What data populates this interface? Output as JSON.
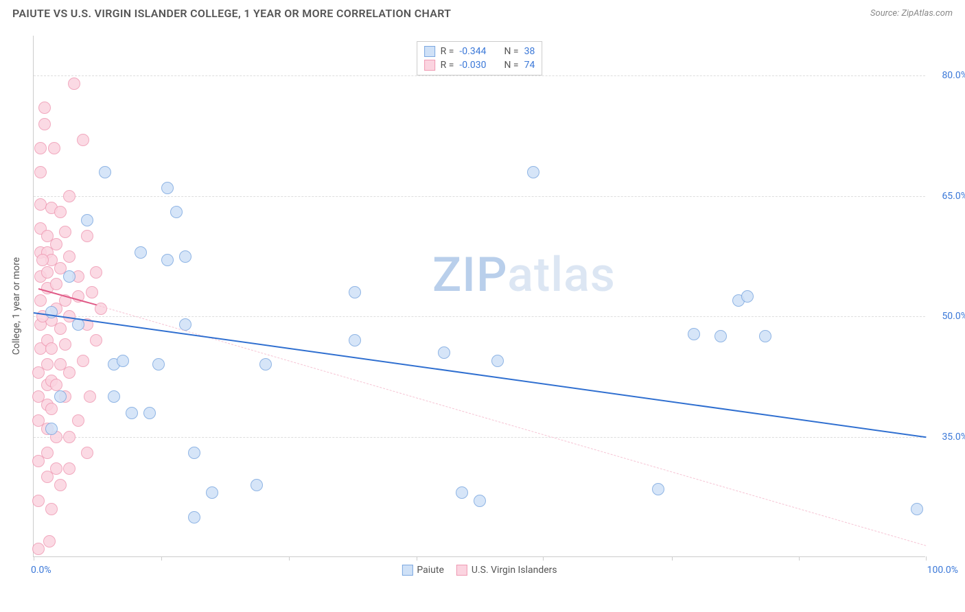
{
  "header": {
    "title": "PAIUTE VS U.S. VIRGIN ISLANDER COLLEGE, 1 YEAR OR MORE CORRELATION CHART",
    "source_prefix": "Source: ",
    "source_name": "ZipAtlas.com"
  },
  "watermark": {
    "a": "ZIP",
    "b": "atlas"
  },
  "axes": {
    "ylabel": "College, 1 year or more",
    "xlim": [
      0,
      100
    ],
    "ylim": [
      20,
      85
    ],
    "yticks": [
      35.0,
      50.0,
      65.0,
      80.0
    ],
    "ytick_labels": [
      "35.0%",
      "50.0%",
      "65.0%",
      "80.0%"
    ],
    "xticks": [
      0,
      14.3,
      28.6,
      42.9,
      57.1,
      71.5,
      85.8,
      100
    ],
    "xaxis_left_label": "0.0%",
    "xaxis_right_label": "100.0%"
  },
  "styling": {
    "grid_color": "#dddddd",
    "axis_color": "#cccccc",
    "tick_label_color": "#3b78d8",
    "ylabel_color": "#555555",
    "ylabel_fontsize": 14,
    "marker_radius": 9,
    "marker_stroke_width": 1,
    "background": "#ffffff"
  },
  "series": {
    "paiute": {
      "label": "Paiute",
      "fill": "#cfe1f7",
      "stroke": "#7ba7e0",
      "trend_solid_color": "#2f6fd0",
      "trend_dash_color": "#a9c6ec",
      "trend_solid": {
        "x0": 0,
        "y0": 50.5,
        "x1": 100,
        "y1": 35.0
      },
      "points": [
        [
          2,
          50.5
        ],
        [
          5,
          49
        ],
        [
          6,
          62
        ],
        [
          8,
          68
        ],
        [
          9,
          40
        ],
        [
          9,
          44
        ],
        [
          10,
          44.5
        ],
        [
          11,
          38
        ],
        [
          12,
          58
        ],
        [
          13,
          38
        ],
        [
          15,
          66
        ],
        [
          16,
          63
        ],
        [
          17,
          57.5
        ],
        [
          18,
          33
        ],
        [
          18,
          25
        ],
        [
          20,
          28
        ],
        [
          25,
          29
        ],
        [
          26,
          44
        ],
        [
          14,
          44
        ],
        [
          15,
          57
        ],
        [
          17,
          49
        ],
        [
          36,
          53
        ],
        [
          36,
          47
        ],
        [
          46,
          45.5
        ],
        [
          48,
          28
        ],
        [
          50,
          27
        ],
        [
          52,
          44.5
        ],
        [
          56,
          68
        ],
        [
          70,
          28.5
        ],
        [
          74,
          47.8
        ],
        [
          77,
          47.5
        ],
        [
          79,
          52
        ],
        [
          80,
          52.5
        ],
        [
          82,
          47.5
        ],
        [
          99,
          26
        ],
        [
          4,
          55
        ],
        [
          3,
          40
        ],
        [
          2,
          36
        ]
      ]
    },
    "usvi": {
      "label": "U.S. Virgin Islanders",
      "fill": "#fbd4e0",
      "stroke": "#ef9ab3",
      "trend_solid_color": "#e05a87",
      "trend_dash_color": "#f6c3d3",
      "trend_solid": {
        "x0": 0.5,
        "y0": 53.5,
        "x1": 7,
        "y1": 51.5
      },
      "trend_dash": {
        "x0": 7,
        "y0": 51.5,
        "x1": 100,
        "y1": 21.5
      },
      "points": [
        [
          0.5,
          21
        ],
        [
          0.5,
          27
        ],
        [
          0.5,
          32
        ],
        [
          0.5,
          37
        ],
        [
          0.5,
          40
        ],
        [
          0.5,
          43
        ],
        [
          0.8,
          46
        ],
        [
          0.8,
          49
        ],
        [
          0.8,
          52
        ],
        [
          0.8,
          55
        ],
        [
          0.8,
          58
        ],
        [
          0.8,
          61
        ],
        [
          0.8,
          64
        ],
        [
          0.8,
          68
        ],
        [
          0.8,
          71
        ],
        [
          1.2,
          74
        ],
        [
          1.2,
          76
        ],
        [
          1.5,
          30
        ],
        [
          1.5,
          33
        ],
        [
          1.5,
          36
        ],
        [
          1.5,
          39
        ],
        [
          1.5,
          41.5
        ],
        [
          1.5,
          44
        ],
        [
          1.5,
          47
        ],
        [
          1.5,
          53.5
        ],
        [
          1.5,
          55.5
        ],
        [
          1.5,
          58
        ],
        [
          1.5,
          60
        ],
        [
          1.8,
          22
        ],
        [
          2,
          26
        ],
        [
          2,
          38.5
        ],
        [
          2,
          42
        ],
        [
          2,
          46
        ],
        [
          2,
          49.5
        ],
        [
          2,
          57
        ],
        [
          2,
          63.5
        ],
        [
          2.3,
          71
        ],
        [
          2.5,
          31
        ],
        [
          2.5,
          35
        ],
        [
          2.5,
          41.5
        ],
        [
          2.5,
          51
        ],
        [
          2.5,
          54
        ],
        [
          2.5,
          59
        ],
        [
          3,
          29
        ],
        [
          3,
          44
        ],
        [
          3,
          48.5
        ],
        [
          3,
          56
        ],
        [
          3,
          63
        ],
        [
          3.5,
          40
        ],
        [
          3.5,
          46.5
        ],
        [
          3.5,
          52
        ],
        [
          3.5,
          60.5
        ],
        [
          4,
          35
        ],
        [
          4,
          43
        ],
        [
          4,
          50
        ],
        [
          4,
          57.5
        ],
        [
          4,
          65
        ],
        [
          4.5,
          79
        ],
        [
          5,
          37
        ],
        [
          5,
          52.5
        ],
        [
          5,
          55
        ],
        [
          5.5,
          44.5
        ],
        [
          5.5,
          72
        ],
        [
          6,
          33
        ],
        [
          6,
          49
        ],
        [
          6,
          60
        ],
        [
          6.3,
          40
        ],
        [
          6.5,
          53
        ],
        [
          7,
          47
        ],
        [
          7,
          55.5
        ],
        [
          7.5,
          51
        ],
        [
          4,
          31
        ],
        [
          1,
          50
        ],
        [
          1,
          57
        ]
      ]
    }
  },
  "legend_top": {
    "rows": [
      {
        "series": "paiute",
        "r_label": "R =",
        "r_val": "-0.344",
        "n_label": "N =",
        "n_val": "38"
      },
      {
        "series": "usvi",
        "r_label": "R =",
        "r_val": "-0.030",
        "n_label": "N =",
        "n_val": "74"
      }
    ]
  },
  "legend_bottom": {
    "items": [
      {
        "series": "paiute"
      },
      {
        "series": "usvi"
      }
    ]
  }
}
